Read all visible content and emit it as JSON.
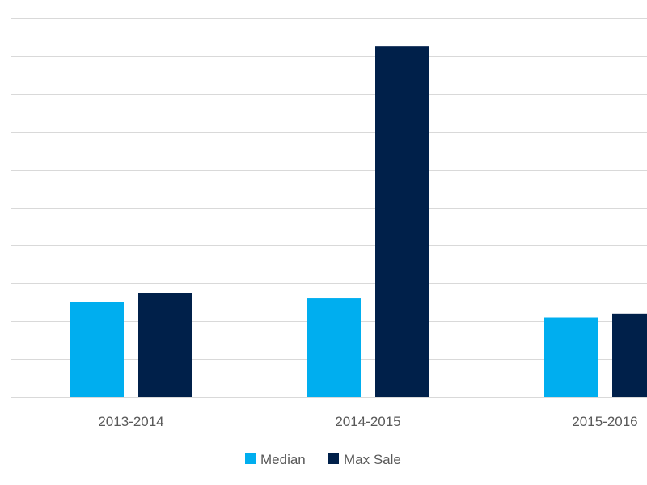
{
  "chart_data": {
    "type": "bar",
    "title": "",
    "xlabel": "",
    "ylabel": "",
    "categories": [
      "2013-2014",
      "2014-2015",
      "2015-2016"
    ],
    "series": [
      {
        "name": "Median",
        "color": "#00aeef",
        "values": [
          2.5,
          2.6,
          2.1
        ]
      },
      {
        "name": "Max Sale",
        "color": "#00204a",
        "values": [
          2.75,
          9.25,
          2.2
        ]
      }
    ],
    "ylim": [
      0,
      10
    ],
    "y_gridlines": 10,
    "grid": true,
    "y_tick_labels_visible": false,
    "legend_position": "bottom"
  }
}
